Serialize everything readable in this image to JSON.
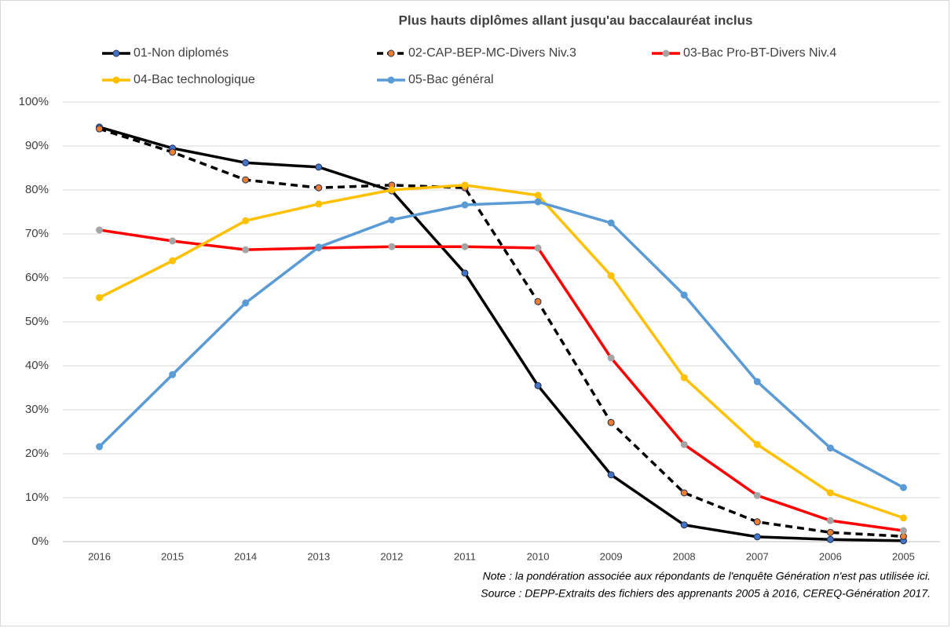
{
  "chart_data": {
    "type": "line",
    "title": "Plus hauts diplômes allant jusqu'au baccalauréat inclus",
    "categories": [
      "2016",
      "2015",
      "2014",
      "2013",
      "2012",
      "2011",
      "2010",
      "2009",
      "2008",
      "2007",
      "2006",
      "2005"
    ],
    "series": [
      {
        "name": "01-Non diplomés",
        "color": "#000000",
        "marker_color": "#4472c4",
        "dashed": false,
        "values": [
          94.3,
          89.5,
          86.2,
          85.2,
          79.8,
          61.1,
          35.5,
          15.2,
          3.8,
          1.1,
          0.5,
          0.2
        ]
      },
      {
        "name": "02-CAP-BEP-MC-Divers Niv.3",
        "color": "#000000",
        "marker_color": "#ed7d31",
        "dashed": true,
        "values": [
          93.9,
          88.6,
          82.3,
          80.5,
          81.1,
          80.5,
          54.6,
          27.1,
          11.1,
          4.5,
          2.1,
          1.2
        ]
      },
      {
        "name": "03-Bac Pro-BT-Divers Niv.4",
        "color": "#ff0000",
        "marker_color": "#a5a5a5",
        "dashed": false,
        "values": [
          70.9,
          68.4,
          66.4,
          66.8,
          67.1,
          67.1,
          66.8,
          41.8,
          22.1,
          10.5,
          4.8,
          2.5
        ]
      },
      {
        "name": "04-Bac technologique",
        "color": "#ffc000",
        "marker_color": "#ffc000",
        "dashed": false,
        "values": [
          55.5,
          63.9,
          73.0,
          76.8,
          80.0,
          81.1,
          78.8,
          60.5,
          37.3,
          22.1,
          11.1,
          5.4
        ]
      },
      {
        "name": "05-Bac général",
        "color": "#5b9bd5",
        "marker_color": "#5b9bd5",
        "dashed": false,
        "values": [
          21.6,
          38.0,
          54.3,
          67.0,
          73.2,
          76.6,
          77.3,
          72.5,
          56.1,
          36.4,
          21.3,
          12.3
        ]
      }
    ],
    "ylim": [
      0,
      100
    ],
    "yticks": [
      {
        "value": 0,
        "label": "0%"
      },
      {
        "value": 10,
        "label": "10%"
      },
      {
        "value": 20,
        "label": "20%"
      },
      {
        "value": 30,
        "label": "30%"
      },
      {
        "value": 40,
        "label": "40%"
      },
      {
        "value": 50,
        "label": "50%"
      },
      {
        "value": 60,
        "label": "60%"
      },
      {
        "value": 70,
        "label": "70%"
      },
      {
        "value": 80,
        "label": "80%"
      },
      {
        "value": 90,
        "label": "90%"
      },
      {
        "value": 100,
        "label": "100%"
      }
    ],
    "grid": true,
    "notes": [
      "Note : la pondération associée aux répondants de l'enquête Génération n'est pas utilisée ici.",
      "Source : DEPP-Extraits des fichiers des apprenants 2005 à 2016, CEREQ-Génération 2017."
    ]
  }
}
